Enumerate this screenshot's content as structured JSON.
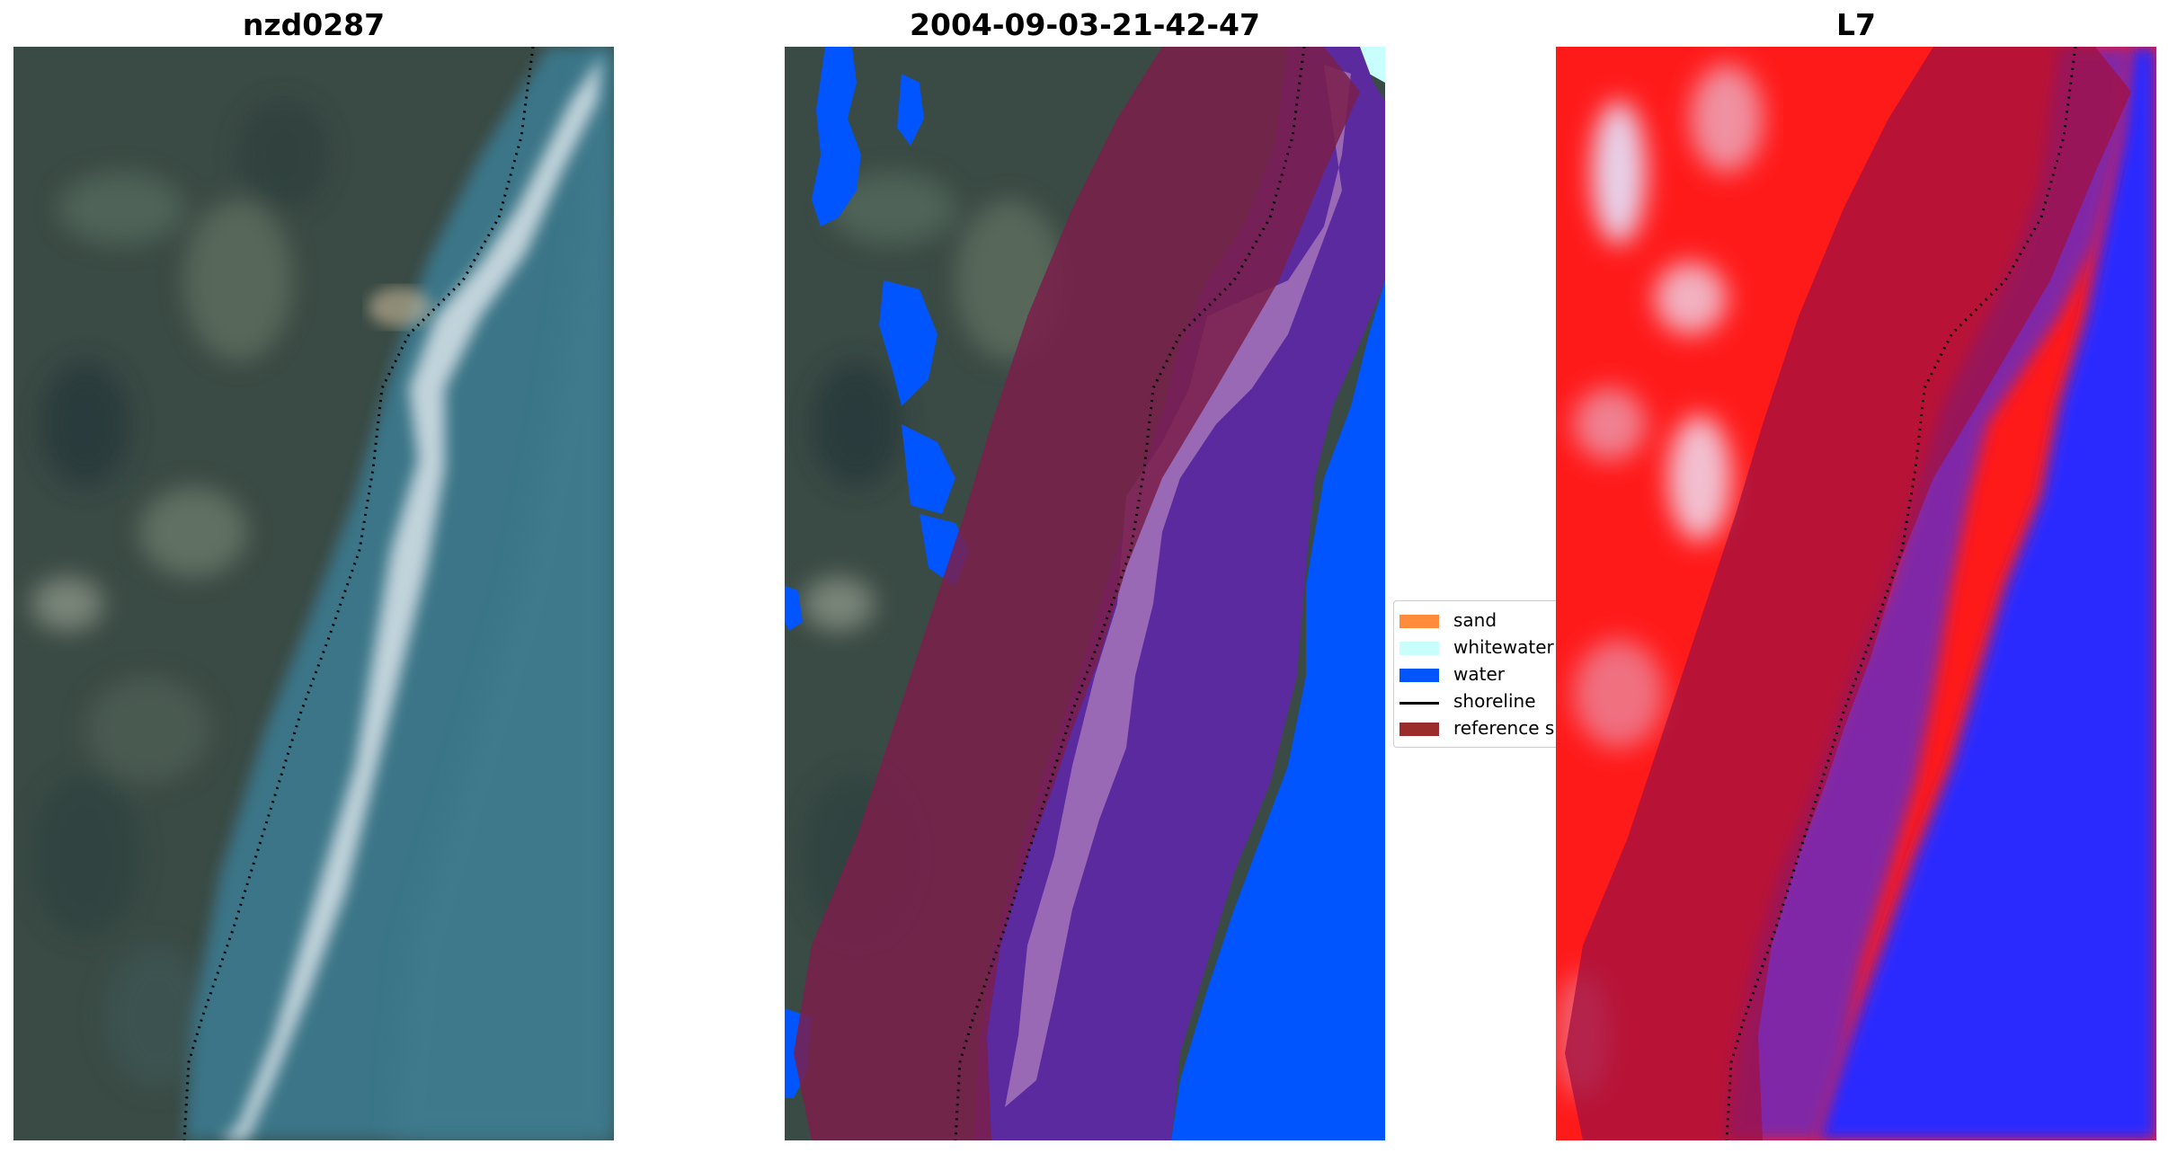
{
  "panels": [
    {
      "title": "nzd0287",
      "kind": "rgb-satellite"
    },
    {
      "title": "2004-09-03-21-42-47",
      "kind": "classified-overlay"
    },
    {
      "title": "L7",
      "kind": "water-index"
    }
  ],
  "legend": {
    "items": [
      {
        "label": "sand",
        "type": "patch",
        "color": "#ff8c3a"
      },
      {
        "label": "whitewater",
        "type": "patch",
        "color": "#c8fffc"
      },
      {
        "label": "water",
        "type": "patch",
        "color": "#0055ff"
      },
      {
        "label": "shoreline",
        "type": "line",
        "color": "#000000"
      },
      {
        "label": "reference s",
        "type": "patch",
        "color": "#9b2c2c"
      }
    ]
  },
  "colors": {
    "land": "#3a4a44",
    "sea": "#3b7487",
    "surf": "#e8eef2",
    "water_class": "#0055ff",
    "buffer": "#7a1f4a",
    "index_land": "#ff1a1a",
    "index_water": "#2a2aff"
  }
}
